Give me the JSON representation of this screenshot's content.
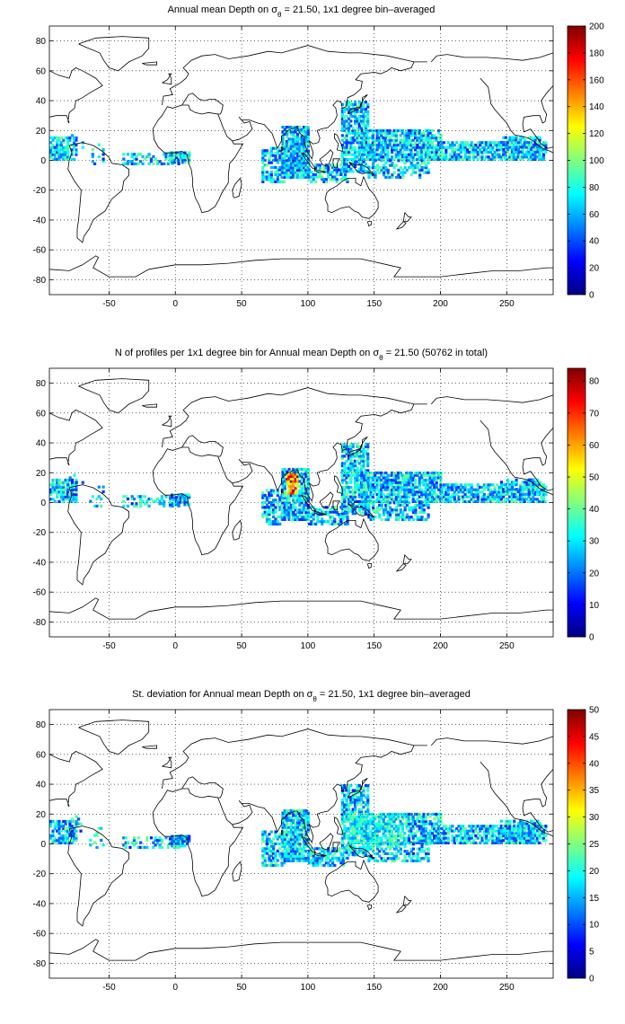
{
  "chart_data": [
    {
      "type": "heatmap",
      "title": "Annual mean Depth on σθ = 21.50, 1x1 degree bin–averaged",
      "title_main": "Annual mean Depth on",
      "title_sym": "σ",
      "title_sub": "θ",
      "title_rest": " = 21.50, 1x1 degree bin–averaged",
      "xlim": [
        -95,
        285
      ],
      "ylim": [
        -90,
        90
      ],
      "xticks": [
        "-50",
        "0",
        "50",
        "100",
        "150",
        "200",
        "250"
      ],
      "yticks": [
        "80",
        "60",
        "40",
        "20",
        "0",
        "-20",
        "-40",
        "-60",
        "-80"
      ],
      "grid": true,
      "colorbar": {
        "range": [
          0,
          200
        ],
        "ticks": [
          "200",
          "180",
          "160",
          "140",
          "120",
          "100",
          "80",
          "60",
          "40",
          "20",
          "0"
        ]
      }
    },
    {
      "type": "heatmap",
      "title": "N of profiles per 1x1 degree bin for Annual mean Depth on σθ = 21.50 (50762 in total)",
      "title_main": "N of profiles per 1x1 degree bin for Annual mean Depth on",
      "title_sym": "σ",
      "title_sub": "θ",
      "title_rest": " = 21.50 (50762 in total)",
      "xlim": [
        -95,
        285
      ],
      "ylim": [
        -90,
        90
      ],
      "xticks": [
        "-50",
        "0",
        "50",
        "100",
        "150",
        "200",
        "250"
      ],
      "yticks": [
        "80",
        "60",
        "40",
        "20",
        "0",
        "-20",
        "-40",
        "-60",
        "-80"
      ],
      "grid": true,
      "colorbar": {
        "range": [
          0,
          84
        ],
        "ticks": [
          "80",
          "70",
          "60",
          "50",
          "40",
          "30",
          "20",
          "10",
          "0"
        ]
      }
    },
    {
      "type": "heatmap",
      "title": "St. deviation for Annual mean Depth on σθ = 21.50, 1x1 degree bin–averaged",
      "title_main": "St. deviation for Annual mean Depth on",
      "title_sym": "σ",
      "title_sub": "θ",
      "title_rest": " = 21.50, 1x1 degree bin–averaged",
      "xlim": [
        -95,
        285
      ],
      "ylim": [
        -90,
        90
      ],
      "xticks": [
        "-50",
        "0",
        "50",
        "100",
        "150",
        "200",
        "250"
      ],
      "yticks": [
        "80",
        "60",
        "40",
        "20",
        "0",
        "-20",
        "-40",
        "-60",
        "-80"
      ],
      "grid": true,
      "colorbar": {
        "range": [
          0,
          50
        ],
        "ticks": [
          "50",
          "45",
          "40",
          "35",
          "30",
          "25",
          "20",
          "15",
          "10",
          "5",
          "0"
        ]
      }
    }
  ]
}
